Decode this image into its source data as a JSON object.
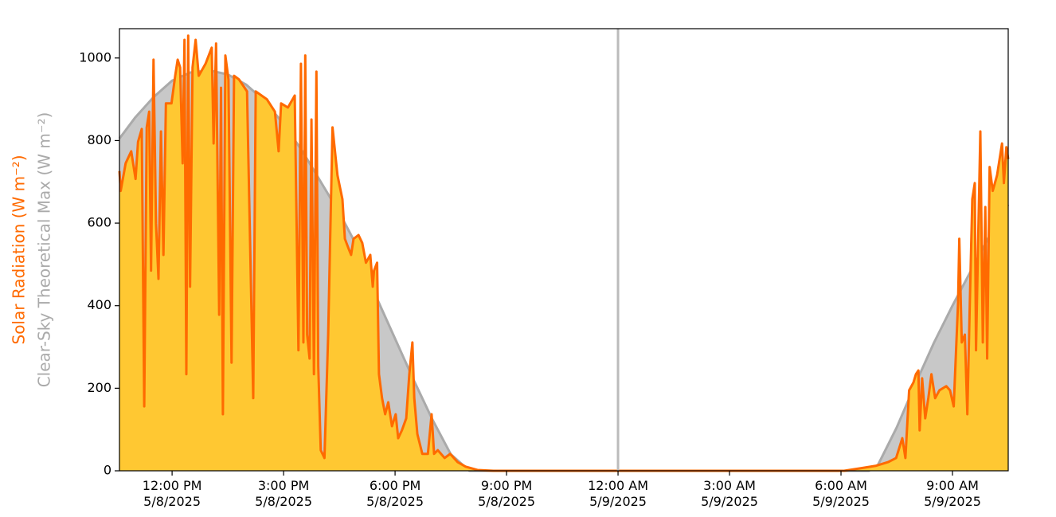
{
  "chart_data": {
    "type": "line",
    "ylim": [
      0,
      1071
    ],
    "yticks": [
      0,
      200,
      400,
      600,
      800,
      1000
    ],
    "xlim": [
      "2025-05-08T10:35",
      "2025-05-09T10:30"
    ],
    "xticks": [
      {
        "value": "2025-05-08T12:00",
        "label": "12:00 PM\n5/8/2025"
      },
      {
        "value": "2025-05-08T15:00",
        "label": "3:00 PM\n5/8/2025"
      },
      {
        "value": "2025-05-08T18:00",
        "label": "6:00 PM\n5/8/2025"
      },
      {
        "value": "2025-05-08T21:00",
        "label": "9:00 PM\n5/8/2025"
      },
      {
        "value": "2025-05-09T00:00",
        "label": "12:00 AM\n5/9/2025"
      },
      {
        "value": "2025-05-09T03:00",
        "label": "3:00 AM\n5/9/2025"
      },
      {
        "value": "2025-05-09T06:00",
        "label": "6:00 AM\n5/9/2025"
      },
      {
        "value": "2025-05-09T09:00",
        "label": "9:00 AM\n5/9/2025"
      }
    ],
    "vlines": [
      {
        "x": "2025-05-09T00:00",
        "color": "#bbbbbb"
      }
    ],
    "series": [
      {
        "name": "Clear-Sky Theoretical Max (W m⁻²)",
        "color": "#aaaaaa",
        "fill": "#c8c8c8",
        "x": [
          "2025-05-08T10:35",
          "2025-05-08T11:00",
          "2025-05-08T11:30",
          "2025-05-08T12:00",
          "2025-05-08T12:30",
          "2025-05-08T13:00",
          "2025-05-08T13:30",
          "2025-05-08T14:00",
          "2025-05-08T14:30",
          "2025-05-08T15:00",
          "2025-05-08T15:30",
          "2025-05-08T16:00",
          "2025-05-08T16:30",
          "2025-05-08T17:00",
          "2025-05-08T17:30",
          "2025-05-08T18:00",
          "2025-05-08T18:30",
          "2025-05-08T19:00",
          "2025-05-08T19:30",
          "2025-05-08T20:00",
          "2025-05-09T06:45",
          "2025-05-09T07:00",
          "2025-05-09T07:30",
          "2025-05-09T08:00",
          "2025-05-09T08:30",
          "2025-05-09T09:00",
          "2025-05-09T09:30",
          "2025-05-09T10:00",
          "2025-05-09T10:30"
        ],
        "values": [
          805,
          855,
          905,
          945,
          965,
          970,
          960,
          935,
          895,
          840,
          775,
          700,
          625,
          540,
          420,
          320,
          220,
          125,
          40,
          0,
          0,
          15,
          105,
          210,
          310,
          400,
          485,
          570,
          645
        ]
      },
      {
        "name": "Solar Radiation (W m⁻²)",
        "color": "#ff6a00",
        "fill": "#ffc832",
        "x": [
          "2025-05-08T10:35",
          "2025-05-08T10:37",
          "2025-05-08T10:45",
          "2025-05-08T10:54",
          "2025-05-08T11:01",
          "2025-05-08T11:05",
          "2025-05-08T11:11",
          "2025-05-08T11:15",
          "2025-05-08T11:19",
          "2025-05-08T11:23",
          "2025-05-08T11:26",
          "2025-05-08T11:30",
          "2025-05-08T11:34",
          "2025-05-08T11:38",
          "2025-05-08T11:42",
          "2025-05-08T11:46",
          "2025-05-08T11:50",
          "2025-05-08T11:59",
          "2025-05-08T12:05",
          "2025-05-08T12:09",
          "2025-05-08T12:13",
          "2025-05-08T12:17",
          "2025-05-08T12:20",
          "2025-05-08T12:23",
          "2025-05-08T12:26",
          "2025-05-08T12:29",
          "2025-05-08T12:33",
          "2025-05-08T12:38",
          "2025-05-08T12:43",
          "2025-05-08T12:54",
          "2025-05-08T13:04",
          "2025-05-08T13:07",
          "2025-05-08T13:11",
          "2025-05-08T13:16",
          "2025-05-08T13:19",
          "2025-05-08T13:22",
          "2025-05-08T13:26",
          "2025-05-08T13:31",
          "2025-05-08T13:36",
          "2025-05-08T13:40",
          "2025-05-08T13:48",
          "2025-05-08T14:01",
          "2025-05-08T14:11",
          "2025-05-08T14:15",
          "2025-05-08T14:33",
          "2025-05-08T14:46",
          "2025-05-08T14:52",
          "2025-05-08T14:56",
          "2025-05-08T15:07",
          "2025-05-08T15:18",
          "2025-05-08T15:24",
          "2025-05-08T15:28",
          "2025-05-08T15:32",
          "2025-05-08T15:35",
          "2025-05-08T15:38",
          "2025-05-08T15:42",
          "2025-05-08T15:45",
          "2025-05-08T15:49",
          "2025-05-08T15:53",
          "2025-05-08T15:56",
          "2025-05-08T16:00",
          "2025-05-08T16:06",
          "2025-05-08T16:12",
          "2025-05-08T16:19",
          "2025-05-08T16:27",
          "2025-05-08T16:35",
          "2025-05-08T16:39",
          "2025-05-08T16:44",
          "2025-05-08T16:49",
          "2025-05-08T16:53",
          "2025-05-08T17:01",
          "2025-05-08T17:07",
          "2025-05-08T17:13",
          "2025-05-08T17:20",
          "2025-05-08T17:24",
          "2025-05-08T17:26",
          "2025-05-08T17:31",
          "2025-05-08T17:34",
          "2025-05-08T17:39",
          "2025-05-08T17:44",
          "2025-05-08T17:49",
          "2025-05-08T17:55",
          "2025-05-08T18:01",
          "2025-05-08T18:05",
          "2025-05-08T18:11",
          "2025-05-08T18:18",
          "2025-05-08T18:23",
          "2025-05-08T18:28",
          "2025-05-08T18:31",
          "2025-05-08T18:36",
          "2025-05-08T18:44",
          "2025-05-08T18:53",
          "2025-05-08T18:59",
          "2025-05-08T19:03",
          "2025-05-08T19:09",
          "2025-05-08T19:20",
          "2025-05-08T19:29",
          "2025-05-08T19:41",
          "2025-05-08T19:54",
          "2025-05-08T20:13",
          "2025-05-08T20:39",
          "2025-05-09T06:05",
          "2025-05-09T06:31",
          "2025-05-09T06:56",
          "2025-05-09T07:16",
          "2025-05-09T07:29",
          "2025-05-09T07:39",
          "2025-05-09T07:44",
          "2025-05-09T07:50",
          "2025-05-09T07:57",
          "2025-05-09T08:01",
          "2025-05-09T08:05",
          "2025-05-09T08:07",
          "2025-05-09T08:11",
          "2025-05-09T08:16",
          "2025-05-09T08:21",
          "2025-05-09T08:26",
          "2025-05-09T08:32",
          "2025-05-09T08:39",
          "2025-05-09T08:50",
          "2025-05-09T08:56",
          "2025-05-09T09:02",
          "2025-05-09T09:09",
          "2025-05-09T09:11",
          "2025-05-09T09:15",
          "2025-05-09T09:20",
          "2025-05-09T09:24",
          "2025-05-09T09:28",
          "2025-05-09T09:32",
          "2025-05-09T09:36",
          "2025-05-09T09:38",
          "2025-05-09T09:41",
          "2025-05-09T09:45",
          "2025-05-09T09:49",
          "2025-05-09T09:53",
          "2025-05-09T09:56",
          "2025-05-09T10:00",
          "2025-05-09T10:05",
          "2025-05-09T10:12",
          "2025-05-09T10:20",
          "2025-05-09T10:23",
          "2025-05-09T10:27",
          "2025-05-09T10:30"
        ],
        "values": [
          726,
          678,
          745,
          774,
          707,
          797,
          828,
          156,
          832,
          870,
          485,
          996,
          600,
          465,
          822,
          523,
          890,
          890,
          957,
          996,
          977,
          745,
          1044,
          234,
          1054,
          446,
          977,
          1044,
          957,
          986,
          1025,
          793,
          1035,
          378,
          928,
          137,
          1006,
          948,
          262,
          957,
          948,
          919,
          176,
          919,
          900,
          870,
          774,
          890,
          880,
          909,
          292,
          986,
          311,
          1006,
          330,
          272,
          851,
          234,
          967,
          253,
          50,
          31,
          330,
          832,
          716,
          658,
          562,
          542,
          523,
          562,
          571,
          552,
          504,
          523,
          446,
          485,
          504,
          234,
          176,
          137,
          166,
          108,
          137,
          79,
          98,
          127,
          234,
          311,
          176,
          89,
          41,
          41,
          137,
          41,
          50,
          31,
          41,
          21,
          10,
          2,
          0,
          0,
          6,
          12,
          21,
          31,
          79,
          31,
          195,
          214,
          234,
          243,
          98,
          224,
          127,
          176,
          234,
          176,
          195,
          205,
          195,
          156,
          407,
          562,
          311,
          330,
          137,
          407,
          658,
          697,
          292,
          523,
          822,
          311,
          639,
          272,
          736,
          678,
          716,
          793,
          697,
          784,
          755
        ]
      }
    ]
  }
}
